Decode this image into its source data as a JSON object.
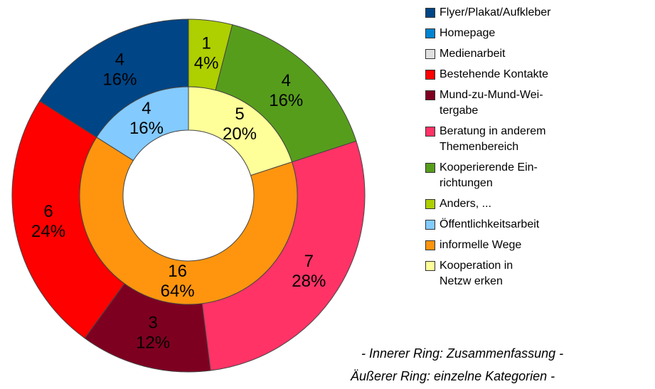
{
  "chart_data": {
    "type": "double-donut",
    "outer": {
      "categories": [
        "Flyer/Plakat/Aufkleber",
        "Homepage",
        "Medienarbeit",
        "Bestehende Kontakte",
        "Mund-zu-Mund-Wei-\ntergabe",
        "Beratung in anderem\nThemenbereich",
        "Kooperierende Ein-\nrichtungen",
        "Anders, ..."
      ],
      "colors": [
        "#004586",
        "#0084d1",
        "#e0e0e0",
        "#ff0000",
        "#7e0021",
        "#ff3366",
        "#579d1c",
        "#aecf00"
      ],
      "values": [
        4,
        0,
        0,
        6,
        3,
        7,
        4,
        1
      ],
      "percent_labels": [
        "16%",
        null,
        null,
        "24%",
        "12%",
        "28%",
        "16%",
        "4%"
      ]
    },
    "inner": {
      "categories": [
        "Öffentlichkeitsarbeit",
        "informelle Wege",
        "Kooperation in\nNetzw erken"
      ],
      "colors": [
        "#83caff",
        "#ff950e",
        "#ffff99"
      ],
      "values": [
        4,
        16,
        5
      ],
      "percent_labels": [
        "16%",
        "64%",
        "20%"
      ]
    },
    "annotations": [
      "- Innerer Ring: Zusammenfassung -",
      "Äußerer Ring: einzelne Kategorien -"
    ]
  }
}
